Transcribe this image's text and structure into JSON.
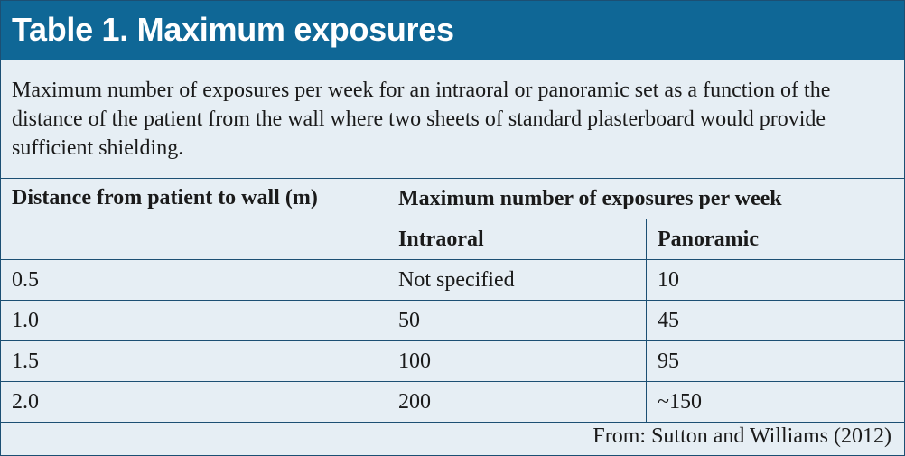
{
  "title": "Table 1. Maximum exposures",
  "caption": "Maximum number of exposures per week for an intraoral or panoramic set as a function of the distance of the patient from the wall where two sheets of standard plasterboard would provide sufficient shielding.",
  "table": {
    "col_distance": "Distance from patient to wall (m)",
    "col_group": "Maximum number of exposures per week",
    "col_intraoral": "Intraoral",
    "col_panoramic": "Panoramic",
    "rows": [
      {
        "distance": "0.5",
        "intraoral": "Not specified",
        "panoramic": "10"
      },
      {
        "distance": "1.0",
        "intraoral": "50",
        "panoramic": "45"
      },
      {
        "distance": "1.5",
        "intraoral": "100",
        "panoramic": "95"
      },
      {
        "distance": "2.0",
        "intraoral": "200",
        "panoramic": "~150"
      }
    ]
  },
  "source": "From: Sutton and Williams (2012)",
  "colors": {
    "title_bar": "#0f6796",
    "background": "#e6eef4",
    "border": "#1c4f73"
  }
}
